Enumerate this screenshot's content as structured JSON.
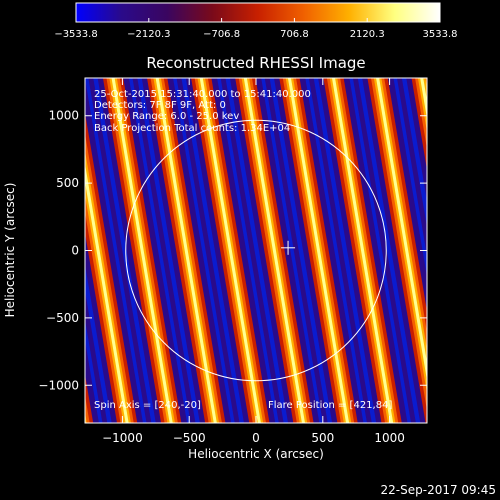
{
  "colorbar": {
    "tick_labels": [
      "−3533.8",
      "−2120.3",
      "−706.8",
      "706.8",
      "2120.3",
      "3533.8"
    ],
    "range": [
      -3533.8,
      3533.8
    ],
    "colors": [
      "#0000ff",
      "#2a0a8a",
      "#3a0560",
      "#7a0a1a",
      "#c82000",
      "#f06000",
      "#ffb000",
      "#ffff80",
      "#ffffff"
    ]
  },
  "chart_data": {
    "type": "heatmap",
    "title": "Reconstructed RHESSI Image",
    "xlabel": "Heliocentric X (arcsec)",
    "ylabel": "Heliocentric Y (arcsec)",
    "xlim": [
      -1280,
      1280
    ],
    "ylim": [
      -1280,
      1280
    ],
    "xticks": [
      -1000,
      -500,
      0,
      500,
      1000
    ],
    "yticks": [
      -1000,
      -500,
      0,
      500,
      1000
    ],
    "xtick_labels": [
      "−1000",
      "−500",
      "0",
      "500",
      "1000"
    ],
    "ytick_labels": [
      "−1000",
      "−500",
      "0",
      "500",
      "1000"
    ],
    "solar_limb_radius": 975,
    "flare_marker": [
      240,
      20
    ],
    "fringe_pattern": {
      "period_arcsec": 330,
      "top_offset_arcsec": -420,
      "tilt_dx_per_dy": 0.17
    },
    "annotations": [
      "25-Oct-2015 15:31:40.000 to 15:41:40.000",
      "Detectors: 7F 8F 9F, Att: 0",
      "Energy Range: 6.0 - 25.0 kev",
      "Back Projection    Total counts: 1.34E+04"
    ],
    "spin_axis": "Spin Axis = [240,-20]",
    "flare_position": "Flare Position = [421,84]"
  },
  "footer": {
    "timestamp": "22-Sep-2017 09:45"
  }
}
